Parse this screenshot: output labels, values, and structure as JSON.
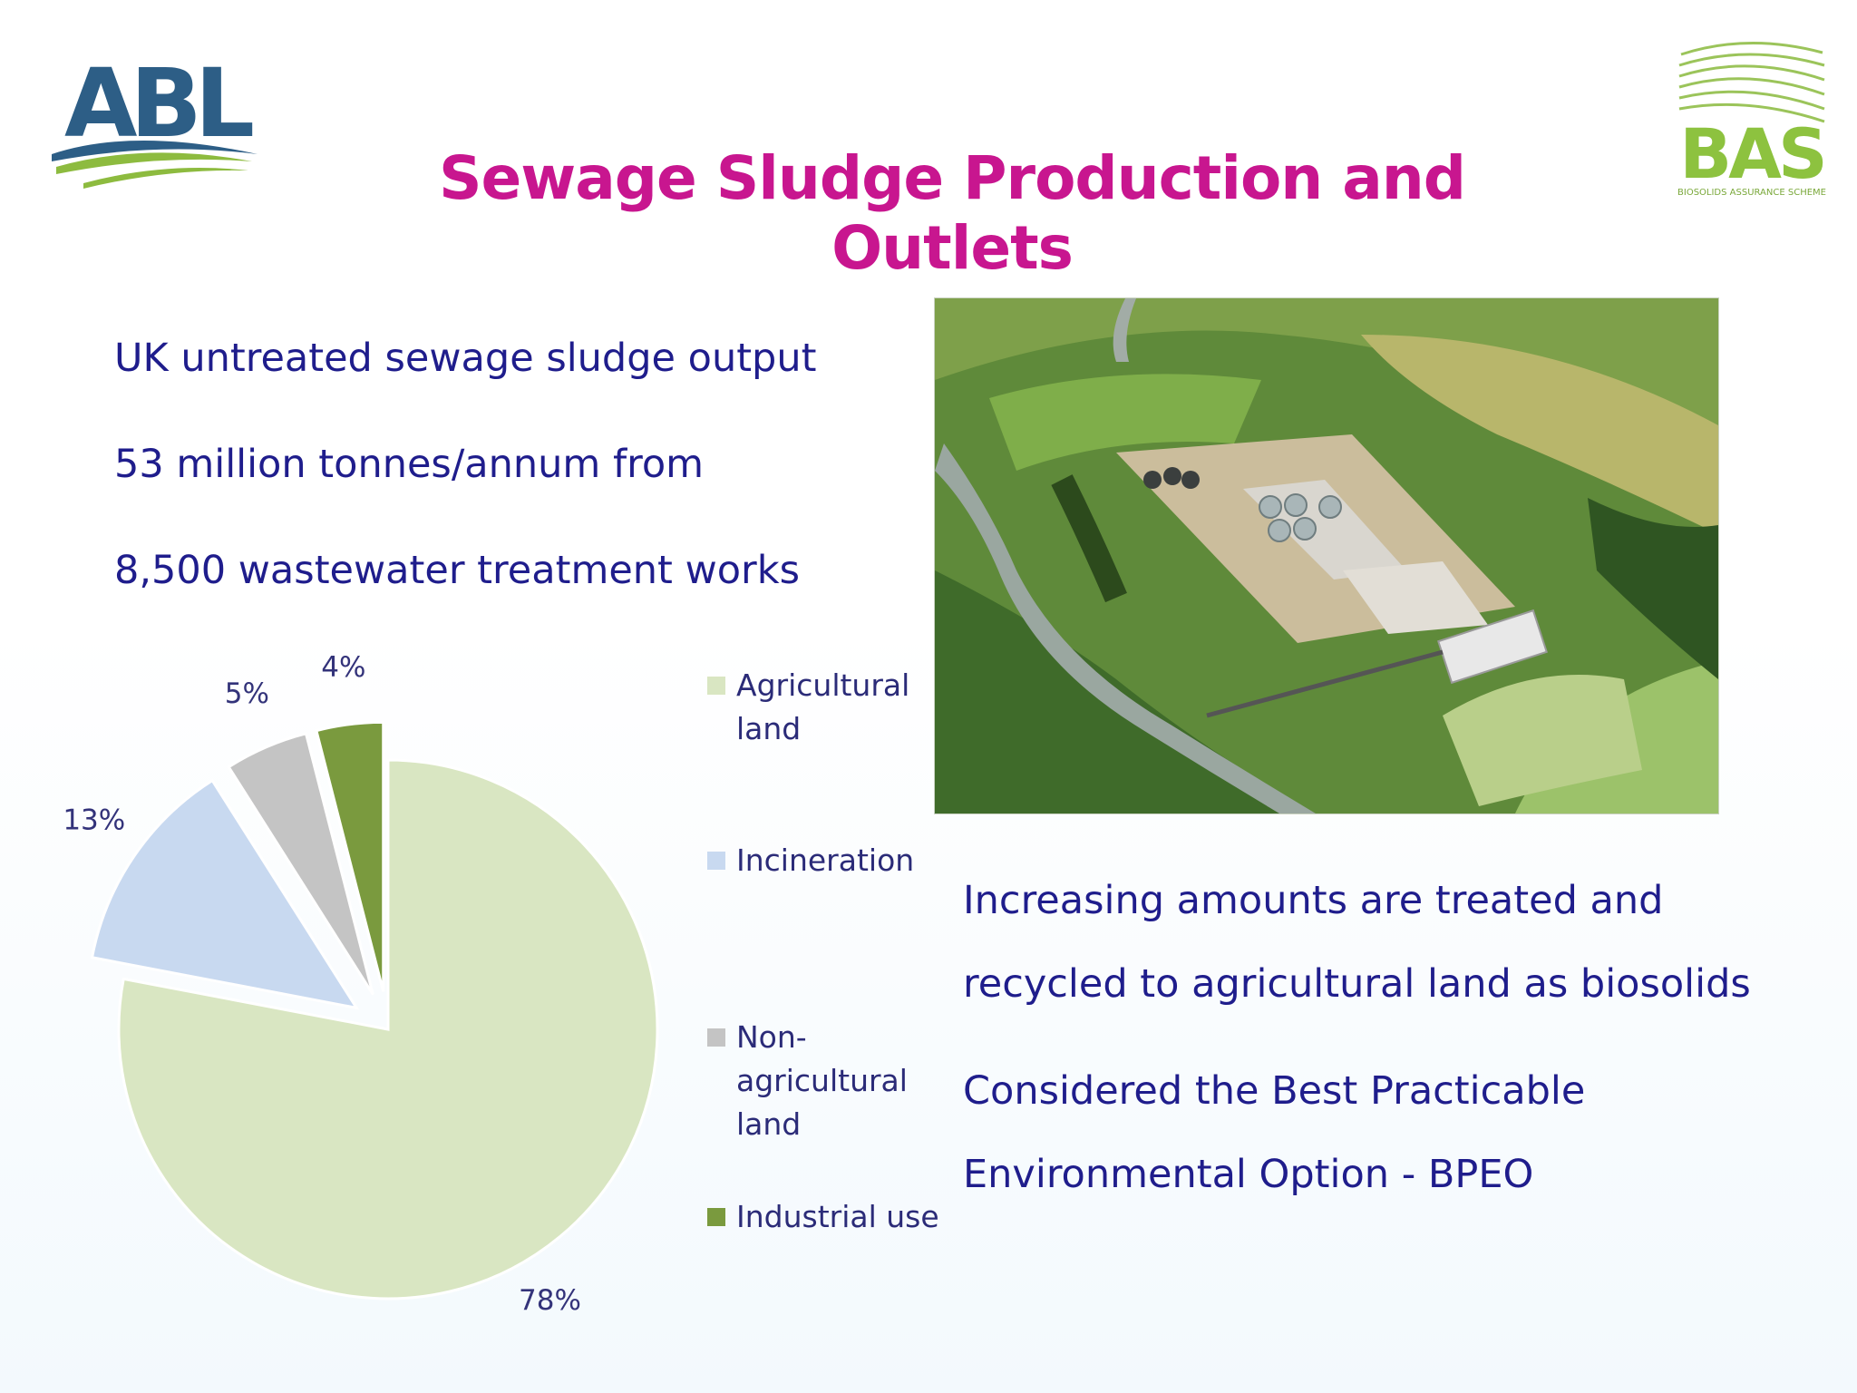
{
  "slide": {
    "title": "Sewage Sludge Production and Outlets",
    "intro_lines": [
      "UK untreated sewage sludge output",
      "53 million tonnes/annum from",
      "8,500 wastewater treatment works"
    ],
    "body_lines": [
      "Increasing amounts are treated and",
      "recycled to agricultural land as biosolids",
      "Considered the Best Practicable",
      "Environmental Option - BPEO"
    ]
  },
  "logos": {
    "left": {
      "text": "ABL",
      "name": "abl-logo"
    },
    "right": {
      "text": "BAS",
      "subtitle": "BIOSOLIDS ASSURANCE SCHEME",
      "name": "bas-logo"
    }
  },
  "photo": {
    "subject": "aerial-wastewater-treatment-works"
  },
  "chart_data": {
    "type": "pie",
    "title": "",
    "slices": [
      {
        "name": "Agricultural land",
        "legend_lines": [
          "Agricultural",
          "land"
        ],
        "value": 78,
        "label": "78%",
        "color": "#d9e6c2",
        "exploded": false
      },
      {
        "name": "Incineration",
        "legend_lines": [
          "Incineration"
        ],
        "value": 13,
        "label": "13%",
        "color": "#c8d9f0",
        "exploded": true
      },
      {
        "name": "Non-agricultural land",
        "legend_lines": [
          "Non-",
          "agricultural",
          "land"
        ],
        "value": 5,
        "label": "5%",
        "color": "#c4c4c4",
        "exploded": true
      },
      {
        "name": "Industrial use",
        "legend_lines": [
          "Industrial use"
        ],
        "value": 4,
        "label": "4%",
        "color": "#7a9a3e",
        "exploded": true
      }
    ],
    "legend_position": "right"
  }
}
